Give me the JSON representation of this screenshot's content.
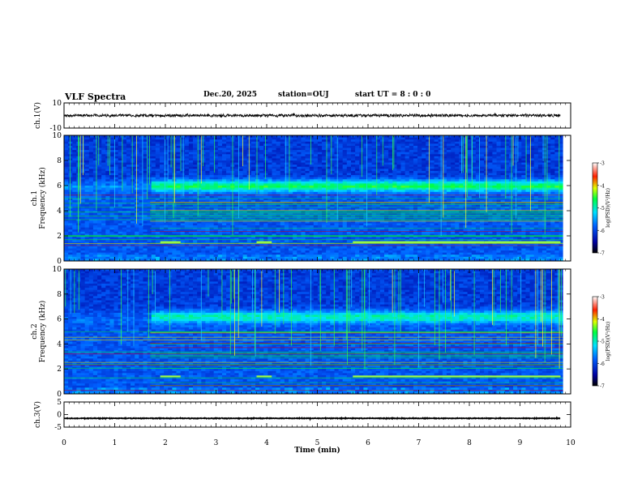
{
  "header": {
    "title": "VLF Spectra",
    "date": "Dec.20, 2025",
    "station": "station=OUJ",
    "start_ut": "start UT =  8 : 0 : 0"
  },
  "chart_data": [
    {
      "type": "line",
      "panel": "waveform-ch1",
      "ylabel": "ch.1(V)",
      "ylim": [
        -10,
        10
      ],
      "yticks": [
        "10",
        "-10"
      ],
      "xlim": [
        0,
        10
      ],
      "x_range_of_data": [
        0,
        9.8
      ],
      "description_values": {
        "baseline": 0,
        "typical_amplitude": 1.5
      }
    },
    {
      "type": "heatmap",
      "panel": "spectrogram-ch1",
      "ylabel": "ch.1\nFrequency (kHz)",
      "ylim": [
        0,
        10
      ],
      "yticks": [
        "0",
        "2",
        "4",
        "6",
        "8",
        "10"
      ],
      "xlim": [
        0,
        10
      ],
      "colorbar": {
        "label": "log(PSD)(V²/Hz)",
        "range": [
          -7,
          -3
        ],
        "ticks": [
          "-3",
          "-4",
          "-5",
          "-6",
          "-7"
        ]
      },
      "features": {
        "band_center_khz": 6.0,
        "line_khz": 1.5
      }
    },
    {
      "type": "heatmap",
      "panel": "spectrogram-ch2",
      "ylabel": "ch.2\nFrequency (kHz)",
      "ylim": [
        0,
        10
      ],
      "yticks": [
        "0",
        "2",
        "4",
        "6",
        "8",
        "10"
      ],
      "xlim": [
        0,
        10
      ],
      "colorbar": {
        "label": "log(PSD)(V²/Hz)",
        "range": [
          -7,
          -3
        ],
        "ticks": [
          "-3",
          "-4",
          "-5",
          "-6",
          "-7"
        ]
      },
      "features": {
        "band_center_khz": 6.2,
        "line_khz": 1.4
      }
    },
    {
      "type": "line",
      "panel": "waveform-ch3",
      "ylabel": "ch.3(V)",
      "ylim": [
        -5,
        5
      ],
      "yticks": [
        "5",
        "0",
        "-5"
      ],
      "xlim": [
        0,
        10
      ],
      "x_range_of_data": [
        0,
        9.8
      ],
      "description_values": {
        "baseline": -1.5
      }
    }
  ],
  "xaxis": {
    "label": "Time (min)",
    "ticks": [
      "0",
      "1",
      "2",
      "3",
      "4",
      "5",
      "6",
      "7",
      "8",
      "9",
      "10"
    ]
  }
}
